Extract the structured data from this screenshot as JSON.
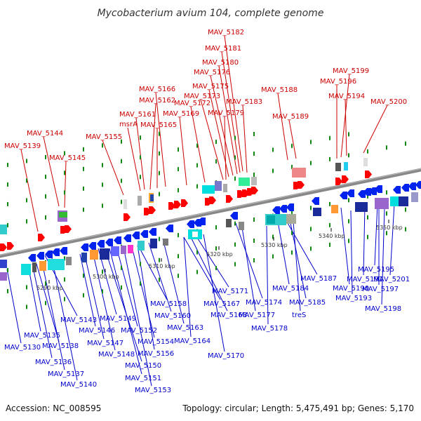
{
  "title": "Mycobacterium avium 104, complete genome",
  "footer": {
    "accession": "Accession: NC_008595",
    "info": "Topology: circular; Length: 5,475,491 bp; Genes: 5,170"
  },
  "colors": {
    "top_label": "#cc0000",
    "bottom_label": "#0000cc",
    "backbone": "#888888",
    "track_dots": "#118811"
  },
  "scale": {
    "ticks": [
      "5290 kbp",
      "5300 kbp",
      "5310 kbp",
      "5320 kbp",
      "5330 kbp",
      "5340 kbp",
      "5350 kbp"
    ]
  },
  "top_labels": [
    "MAV_5182",
    "MAV_5181",
    "MAV_5180",
    "MAV_5176",
    "MAV_5199",
    "MAV_5196",
    "MAV_5175",
    "MAV_5166",
    "MAV_5188",
    "MAV_5173",
    "MAV_5194",
    "MAV_5162",
    "MAV_5172",
    "MAV_5183",
    "MAV_5200",
    "MAV_5179",
    "MAV_5169",
    "MAV_5161",
    "MAV_5189",
    "msrA",
    "MAV_5165",
    "MAV_5144",
    "MAV_5155",
    "MAV_5139",
    "MAV_5145"
  ],
  "bottom_labels": [
    "MAV_5201",
    "MAV_5195",
    "MAV_5191",
    "MAV_5187",
    "MAV_5197",
    "MAV_5190",
    "MAV_5184",
    "MAV_5193",
    "MAV_5171",
    "MAV_5174",
    "MAV_5185",
    "MAV_5158",
    "MAV_5167",
    "MAV_5198",
    "MAV_5160",
    "MAV_5168",
    "MAV_5177",
    "treS",
    "MAV_5149",
    "MAV_5143",
    "MAV_5163",
    "MAV_5178",
    "MAV_5146",
    "MAV_5152",
    "MAV_5135",
    "MAV_5164",
    "MAV_5147",
    "MAV_5154",
    "MAV_5138",
    "MAV_5130",
    "MAV_5148",
    "MAV_5156",
    "MAV_5170",
    "MAV_5136",
    "MAV_5150",
    "MAV_5137",
    "MAV_5151",
    "MAV_5140",
    "MAV_5153"
  ]
}
